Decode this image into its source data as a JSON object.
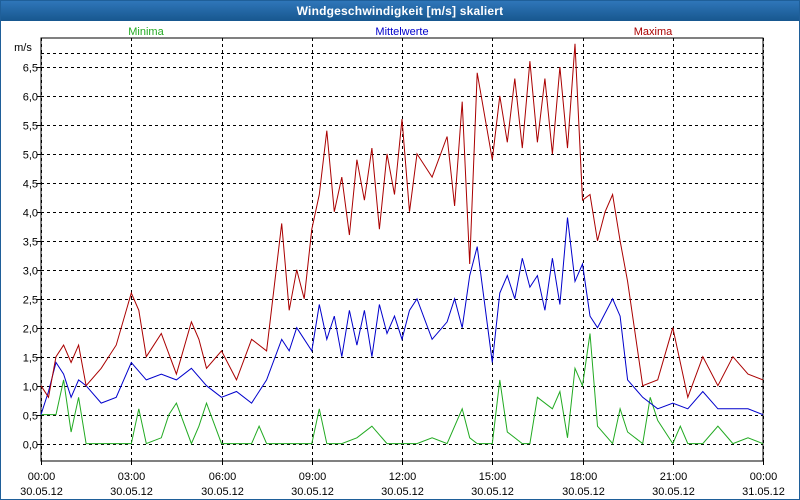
{
  "window": {
    "title": "Windgeschwindigkeit [m/s] skaliert"
  },
  "chart_data": {
    "type": "line",
    "title": "Windgeschwindigkeit [m/s] skaliert",
    "ylabel": "m/s",
    "xlabel": "",
    "ylim": [
      -0.3,
      7.0
    ],
    "grid": true,
    "legend_position": "top",
    "yticks": [
      0.0,
      0.5,
      1.0,
      1.5,
      2.0,
      2.5,
      3.0,
      3.5,
      4.0,
      4.5,
      5.0,
      5.5,
      6.0,
      6.5
    ],
    "ytick_labels": [
      "0,0",
      "0,5",
      "1,0",
      "1,5",
      "2,0",
      "2,5",
      "3,0",
      "3,5",
      "4,0",
      "4,5",
      "5,0",
      "5,5",
      "6,0",
      "6,5"
    ],
    "xticks": [
      {
        "time": "00:00",
        "date": "30.05.12"
      },
      {
        "time": "03:00",
        "date": "30.05.12"
      },
      {
        "time": "06:00",
        "date": "30.05.12"
      },
      {
        "time": "09:00",
        "date": "30.05.12"
      },
      {
        "time": "12:00",
        "date": "30.05.12"
      },
      {
        "time": "15:00",
        "date": "30.05.12"
      },
      {
        "time": "18:00",
        "date": "30.05.12"
      },
      {
        "time": "21:00",
        "date": "30.05.12"
      },
      {
        "time": "00:00",
        "date": "31.05.12"
      }
    ],
    "series": [
      {
        "name": "Minima",
        "color": "#22aa22",
        "x": [
          0,
          0.5,
          0.75,
          1,
          1.25,
          1.5,
          2,
          2.5,
          3,
          3.25,
          3.5,
          4,
          4.25,
          4.5,
          5,
          5.25,
          5.5,
          6,
          6.25,
          6.5,
          7,
          7.25,
          7.5,
          8,
          8.5,
          9,
          9.25,
          9.5,
          10,
          10.5,
          11,
          11.5,
          12,
          12.5,
          13,
          13.5,
          14,
          14.25,
          14.5,
          15,
          15.25,
          15.5,
          16,
          16.25,
          16.5,
          17,
          17.25,
          17.5,
          17.75,
          18,
          18.25,
          18.5,
          19,
          19.25,
          19.5,
          20,
          20.25,
          20.5,
          21,
          21.25,
          21.5,
          22,
          22.5,
          23,
          23.5,
          24
        ],
        "values": [
          0.5,
          0.5,
          1.1,
          0.2,
          0.8,
          0.0,
          0.0,
          0.0,
          0.0,
          0.6,
          0.0,
          0.1,
          0.5,
          0.7,
          0.0,
          0.3,
          0.7,
          0.0,
          0.0,
          0.0,
          0.0,
          0.3,
          0.0,
          0.0,
          0.0,
          0.0,
          0.6,
          0.0,
          0.0,
          0.1,
          0.3,
          0.0,
          0.0,
          0.0,
          0.1,
          0.0,
          0.6,
          0.1,
          0.0,
          0.0,
          1.1,
          0.2,
          0.0,
          0.0,
          0.8,
          0.6,
          0.9,
          0.1,
          1.3,
          1.0,
          1.9,
          0.3,
          0.0,
          0.6,
          0.2,
          0.0,
          0.8,
          0.4,
          0.0,
          0.3,
          0.0,
          0.0,
          0.3,
          0.0,
          0.1,
          0.0
        ]
      },
      {
        "name": "Mittelwerte",
        "color": "#0000cc",
        "x": [
          0,
          0.25,
          0.5,
          0.75,
          1,
          1.25,
          1.5,
          2,
          2.5,
          3,
          3.5,
          4,
          4.5,
          5,
          5.5,
          6,
          6.5,
          7,
          7.5,
          8,
          8.25,
          8.5,
          9,
          9.25,
          9.5,
          9.75,
          10,
          10.25,
          10.5,
          10.75,
          11,
          11.25,
          11.5,
          11.75,
          12,
          12.25,
          12.5,
          13,
          13.5,
          13.75,
          14,
          14.25,
          14.5,
          15,
          15.25,
          15.5,
          15.75,
          16,
          16.25,
          16.5,
          16.75,
          17,
          17.25,
          17.5,
          17.75,
          18,
          18.25,
          18.5,
          19,
          19.25,
          19.5,
          20,
          20.5,
          21,
          21.5,
          22,
          22.5,
          23,
          23.5,
          24
        ],
        "values": [
          0.5,
          0.9,
          1.4,
          1.2,
          0.8,
          1.1,
          1.0,
          0.7,
          0.8,
          1.4,
          1.1,
          1.2,
          1.1,
          1.3,
          1.0,
          0.8,
          0.9,
          0.7,
          1.1,
          1.8,
          1.6,
          2.0,
          1.6,
          2.4,
          1.8,
          2.2,
          1.5,
          2.3,
          1.7,
          2.3,
          1.5,
          2.4,
          1.9,
          2.2,
          1.8,
          2.3,
          2.5,
          1.8,
          2.1,
          2.5,
          2.0,
          2.9,
          3.4,
          1.4,
          2.6,
          2.9,
          2.5,
          3.2,
          2.7,
          2.9,
          2.3,
          3.2,
          2.4,
          3.9,
          2.8,
          3.1,
          2.2,
          2.0,
          2.5,
          2.2,
          1.1,
          0.8,
          0.6,
          0.7,
          0.6,
          0.9,
          0.6,
          0.6,
          0.6,
          0.5
        ]
      },
      {
        "name": "Maxima",
        "color": "#aa0000",
        "x": [
          0,
          0.25,
          0.5,
          0.75,
          1,
          1.25,
          1.5,
          2,
          2.5,
          3,
          3.25,
          3.5,
          4,
          4.5,
          5,
          5.25,
          5.5,
          6,
          6.5,
          7,
          7.5,
          8,
          8.25,
          8.5,
          8.75,
          9,
          9.25,
          9.5,
          9.75,
          10,
          10.25,
          10.5,
          10.75,
          11,
          11.25,
          11.5,
          11.75,
          12,
          12.25,
          12.5,
          13,
          13.5,
          13.75,
          14,
          14.25,
          14.5,
          15,
          15.25,
          15.5,
          15.75,
          16,
          16.25,
          16.5,
          16.75,
          17,
          17.25,
          17.5,
          17.75,
          18,
          18.25,
          18.5,
          18.75,
          19,
          19.25,
          19.5,
          20,
          20.5,
          21,
          21.5,
          22,
          22.5,
          23,
          23.5,
          24
        ],
        "values": [
          1.0,
          0.8,
          1.5,
          1.7,
          1.4,
          1.7,
          1.0,
          1.3,
          1.7,
          2.6,
          2.3,
          1.5,
          1.9,
          1.2,
          2.1,
          1.8,
          1.3,
          1.6,
          1.1,
          1.8,
          1.6,
          3.8,
          2.3,
          3.0,
          2.5,
          3.7,
          4.3,
          5.4,
          4.0,
          4.6,
          3.6,
          4.9,
          4.2,
          5.1,
          3.7,
          5.0,
          4.3,
          5.6,
          4.0,
          5.0,
          4.6,
          5.3,
          4.1,
          5.9,
          3.1,
          6.4,
          4.9,
          6.0,
          5.2,
          6.3,
          5.1,
          6.6,
          5.2,
          6.3,
          5.0,
          6.5,
          5.1,
          6.9,
          4.2,
          4.3,
          3.5,
          4.0,
          4.3,
          3.5,
          2.8,
          1.0,
          1.1,
          2.0,
          0.8,
          1.5,
          1.0,
          1.5,
          1.2,
          1.1
        ]
      }
    ]
  }
}
